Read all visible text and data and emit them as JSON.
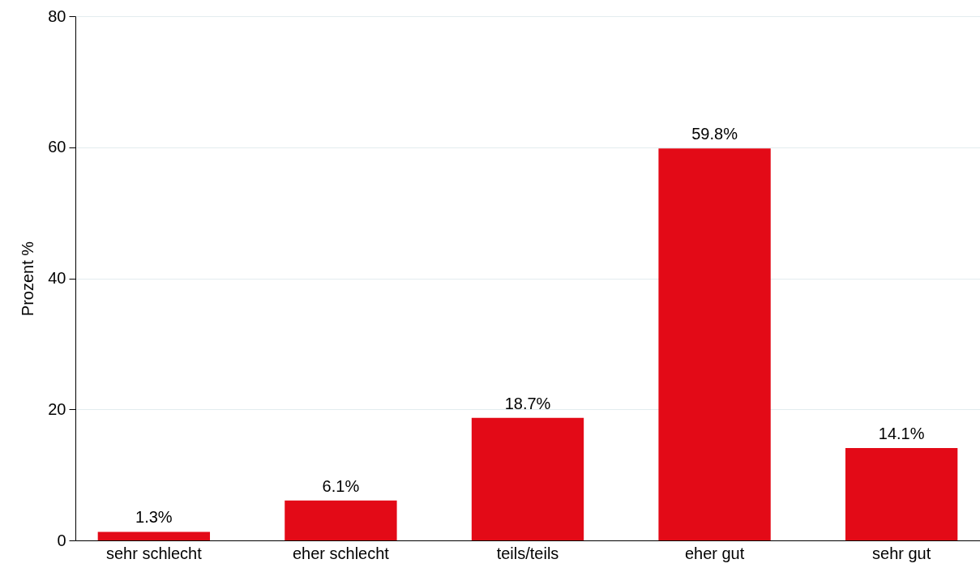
{
  "chart_data": {
    "type": "bar",
    "ylabel": "Prozent %",
    "categories": [
      "sehr schlecht",
      "eher schlecht",
      "teils/teils",
      "eher gut",
      "sehr gut"
    ],
    "values": [
      1.3,
      6.1,
      18.7,
      59.8,
      14.1
    ],
    "value_labels": [
      "1.3%",
      "6.1%",
      "18.7%",
      "59.8%",
      "14.1%"
    ],
    "color": "#e30a17",
    "ylim": [
      0,
      80
    ],
    "yticks": [
      0,
      20,
      40,
      60,
      80
    ],
    "grid": "y"
  }
}
